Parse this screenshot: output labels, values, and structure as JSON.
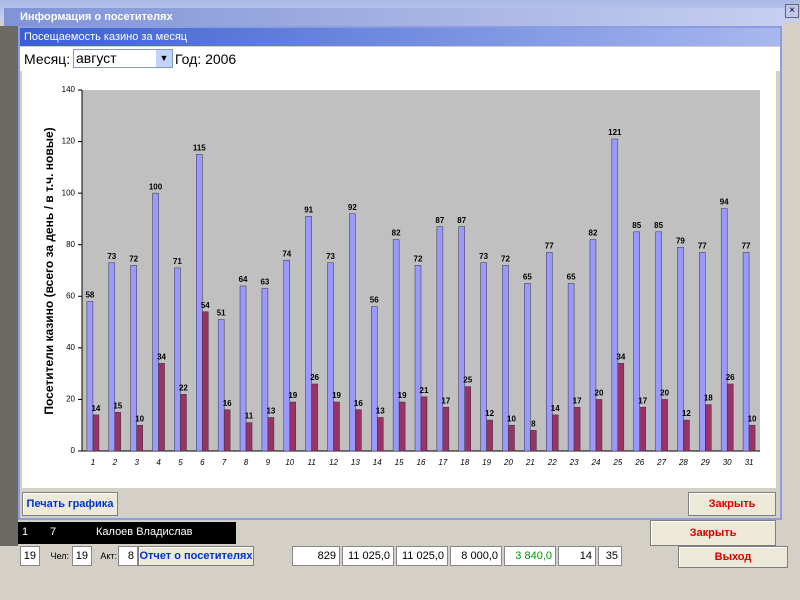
{
  "window": {
    "title": "Информация о посетителях"
  },
  "dialog": {
    "title": "Посещаемость казино за месяц",
    "month_label": "Месяц:",
    "month": "август",
    "year": "Год: 2006"
  },
  "buttons": {
    "print": "Печать графика",
    "close": "Закрыть"
  },
  "background": {
    "row": [
      "1",
      "7",
      "Калоев Владислав"
    ],
    "close": "Закрыть",
    "exit": "Выход",
    "report": "Отчет о посетителях",
    "footer": [
      "19",
      "Чел:",
      "19",
      "Акт:",
      "8",
      "829",
      "11 025,0",
      "11 025,0",
      "8 000,0",
      "3 840,0",
      "14",
      "35"
    ]
  },
  "chart_data": {
    "type": "bar",
    "y_label": "Посетители казино (всего за день / в т.ч. новые)",
    "categories": [
      "1",
      "2",
      "3",
      "4",
      "5",
      "6",
      "7",
      "8",
      "9",
      "10",
      "11",
      "12",
      "13",
      "14",
      "15",
      "16",
      "17",
      "18",
      "19",
      "20",
      "21",
      "22",
      "23",
      "24",
      "25",
      "26",
      "27",
      "28",
      "29",
      "30",
      "31"
    ],
    "series": [
      {
        "color": "#9999ff",
        "values": [
          58,
          73,
          72,
          100,
          71,
          115,
          51,
          64,
          63,
          74,
          91,
          73,
          92,
          56,
          82,
          72,
          87,
          87,
          73,
          72,
          65,
          77,
          65,
          82,
          121,
          85,
          85,
          79,
          77,
          94,
          77
        ]
      },
      {
        "color": "#993366",
        "values": [
          14,
          15,
          10,
          34,
          22,
          54,
          16,
          11,
          13,
          19,
          26,
          19,
          16,
          13,
          19,
          21,
          17,
          25,
          12,
          10,
          8,
          14,
          17,
          20,
          34,
          17,
          20,
          12,
          18,
          26,
          10
        ]
      }
    ],
    "ylim": [
      0,
      140
    ],
    "yticks": [
      0,
      20,
      40,
      60,
      80,
      100,
      120,
      140
    ],
    "grid": false
  }
}
